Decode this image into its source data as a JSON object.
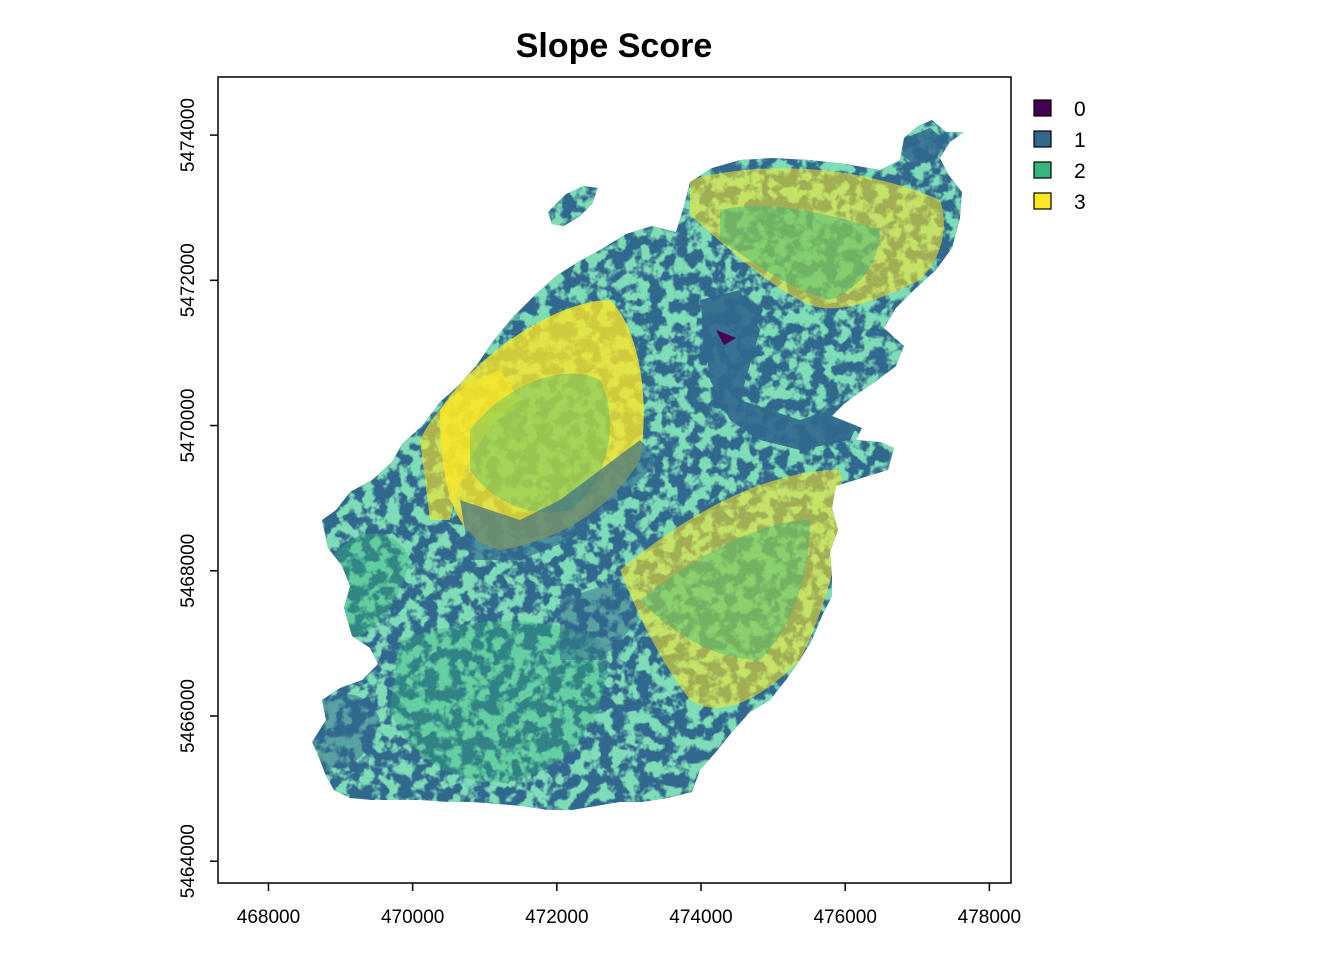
{
  "chart_data": {
    "type": "raster-map",
    "title": "Slope Score",
    "x_axis": {
      "range": [
        467300,
        478300
      ],
      "ticks": [
        468000,
        470000,
        472000,
        474000,
        476000,
        478000
      ],
      "tick_labels": [
        "468000",
        "470000",
        "472000",
        "474000",
        "476000",
        "478000"
      ]
    },
    "y_axis": {
      "range": [
        5463700,
        5474800
      ],
      "ticks": [
        5464000,
        5466000,
        5468000,
        5470000,
        5472000,
        5474000
      ],
      "tick_labels": [
        "5464000",
        "5466000",
        "5468000",
        "5470000",
        "5472000",
        "5474000"
      ]
    },
    "legend": {
      "position": "right",
      "items": [
        {
          "label": "0",
          "color": "#440154"
        },
        {
          "label": "1",
          "color": "#31688E"
        },
        {
          "label": "2",
          "color": "#35B779"
        },
        {
          "label": "3",
          "color": "#FDE725"
        }
      ]
    }
  }
}
